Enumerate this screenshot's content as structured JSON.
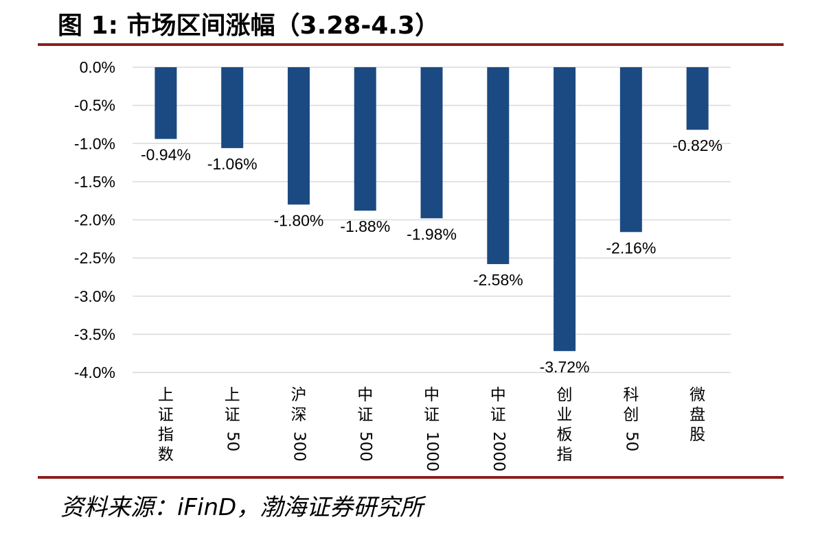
{
  "figure": {
    "title_prefix": "图 1:",
    "title_text": "市场区间涨幅（3.28-4.3）",
    "source": "资料来源：iFinD，渤海证券研究所"
  },
  "chart_data": {
    "type": "bar",
    "categories": [
      "上证指数",
      "上证50",
      "沪深300",
      "中证500",
      "中证1000",
      "中证2000",
      "创业板指",
      "科创50",
      "微盘股"
    ],
    "values": [
      -0.94,
      -1.06,
      -1.8,
      -1.88,
      -1.98,
      -2.58,
      -3.72,
      -2.16,
      -0.82
    ],
    "data_labels": [
      "-0.94%",
      "-1.06%",
      "-1.80%",
      "-1.88%",
      "-1.98%",
      "-2.58%",
      "-3.72%",
      "-2.16%",
      "-0.82%"
    ],
    "ylim": [
      -4.0,
      0.0
    ],
    "yticks": [
      0.0,
      -0.5,
      -1.0,
      -1.5,
      -2.0,
      -2.5,
      -3.0,
      -3.5,
      -4.0
    ],
    "ytick_labels": [
      "0.0%",
      "-0.5%",
      "-1.0%",
      "-1.5%",
      "-2.0%",
      "-2.5%",
      "-3.0%",
      "-3.5%",
      "-4.0%"
    ],
    "grid": true,
    "bar_color": "#1b4a82",
    "grid_color": "#d9d9d9",
    "title": "",
    "xlabel": "",
    "ylabel": ""
  }
}
